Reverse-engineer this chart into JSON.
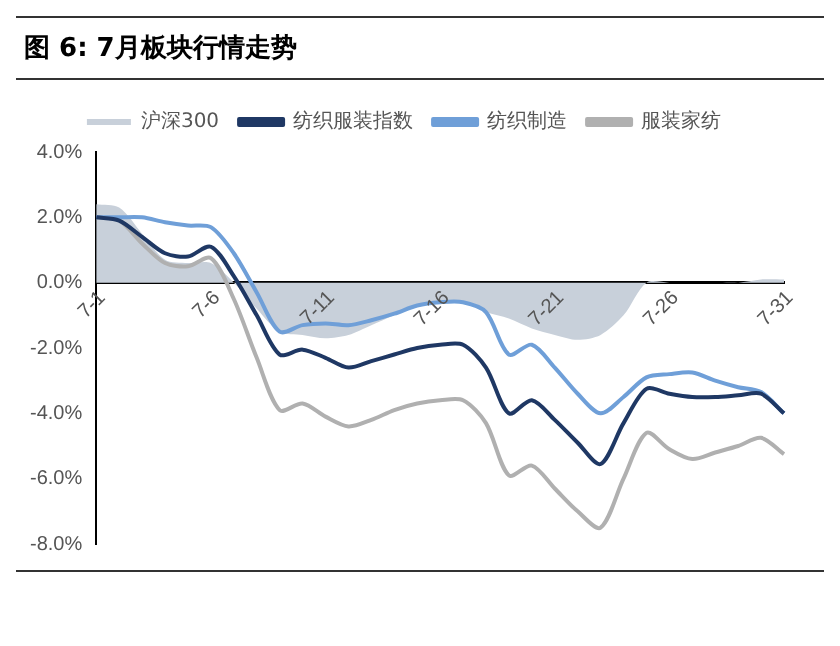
{
  "chart_data": {
    "type": "line",
    "title": "图 6:  7月板块行情走势",
    "categories": [
      "7-1",
      null,
      null,
      null,
      null,
      "7-6",
      null,
      null,
      null,
      null,
      "7-11",
      null,
      null,
      null,
      null,
      "7-16",
      null,
      null,
      null,
      null,
      "7-21",
      null,
      null,
      null,
      null,
      "7-26",
      null,
      null,
      null,
      null,
      "7-31"
    ],
    "series": [
      {
        "name": "沪深300",
        "type": "area",
        "color": "#c8d0da",
        "values": [
          2.4,
          2.3,
          1.5,
          0.7,
          0.6,
          0.6,
          0.0,
          -0.8,
          -1.5,
          -1.6,
          -1.7,
          -1.6,
          -1.3,
          -1.0,
          -0.7,
          -0.6,
          -0.6,
          -0.9,
          -1.1,
          -1.4,
          -1.6,
          -1.75,
          -1.6,
          -1.0,
          0.0,
          0.0,
          0.0,
          0.0,
          0.0,
          0.1,
          0.1
        ]
      },
      {
        "name": "纺织服装指数",
        "color": "#1f3864",
        "values": [
          2.0,
          1.9,
          1.4,
          0.9,
          0.8,
          1.1,
          0.2,
          -1.0,
          -2.2,
          -2.05,
          -2.3,
          -2.6,
          -2.4,
          -2.2,
          -2.0,
          -1.9,
          -1.9,
          -2.6,
          -4.0,
          -3.6,
          -4.2,
          -4.9,
          -5.55,
          -4.3,
          -3.25,
          -3.4,
          -3.5,
          -3.5,
          -3.45,
          -3.4,
          -4.0
        ]
      },
      {
        "name": "纺织制造",
        "color": "#6f9fd8",
        "values": [
          2.0,
          2.0,
          2.0,
          1.85,
          1.75,
          1.7,
          0.9,
          -0.3,
          -1.5,
          -1.3,
          -1.25,
          -1.3,
          -1.15,
          -0.95,
          -0.7,
          -0.6,
          -0.6,
          -0.9,
          -2.2,
          -1.9,
          -2.6,
          -3.4,
          -4.0,
          -3.5,
          -2.9,
          -2.8,
          -2.75,
          -3.0,
          -3.2,
          -3.35,
          -4.0
        ]
      },
      {
        "name": "服装家纺",
        "color": "#b0b0b0",
        "values": [
          2.0,
          1.9,
          1.2,
          0.6,
          0.5,
          0.75,
          -0.5,
          -2.3,
          -3.9,
          -3.7,
          -4.1,
          -4.4,
          -4.2,
          -3.9,
          -3.7,
          -3.6,
          -3.6,
          -4.3,
          -5.9,
          -5.6,
          -6.3,
          -7.0,
          -7.5,
          -6.0,
          -4.6,
          -5.1,
          -5.4,
          -5.2,
          -5.0,
          -4.75,
          -5.25
        ]
      }
    ],
    "ylim": [
      -8,
      4
    ],
    "yticks": [
      {
        "value": 4,
        "label": "4.0%"
      },
      {
        "value": 2,
        "label": "2.0%"
      },
      {
        "value": 0,
        "label": "0.0%"
      },
      {
        "value": -2,
        "label": "-2.0%"
      },
      {
        "value": -4,
        "label": "-4.0%"
      },
      {
        "value": -6,
        "label": "-6.0%"
      },
      {
        "value": -8,
        "label": "-8.0%"
      }
    ],
    "grid": false,
    "legend": "top"
  }
}
